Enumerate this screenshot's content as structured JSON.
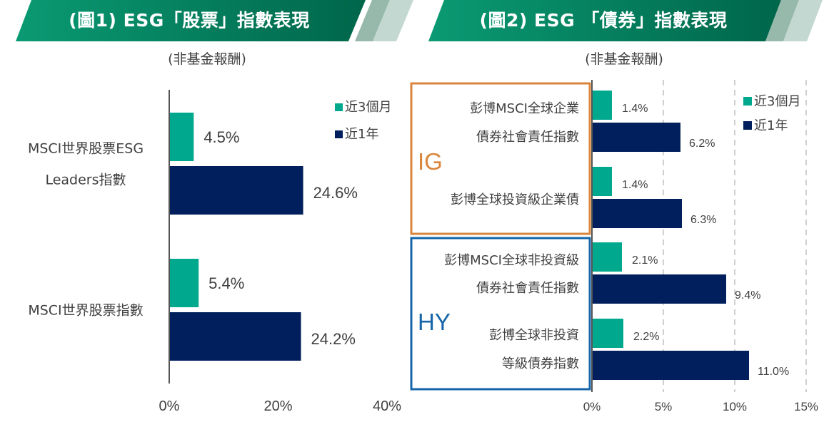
{
  "colors": {
    "banner_dark": "#00664a",
    "banner_light": "#0a9a73",
    "stripe1": "#97b9ac",
    "stripe2": "#c3d8d1",
    "series_3m": "#00a88e",
    "series_1y": "#001f5c",
    "ig_box": "#d9863c",
    "hy_box": "#1565a8",
    "text": "#404040",
    "axis": "#555555",
    "grid": "#d0d0d0"
  },
  "legend": [
    "近3個月",
    "近1年"
  ],
  "chart_data": [
    {
      "type": "bar",
      "orientation": "horizontal",
      "title": "(圖1) ESG「股票」指數表現",
      "subtitle": "(非基金報酬)",
      "categories": [
        [
          "MSCI世界股票ESG",
          "Leaders指數"
        ],
        [
          "MSCI世界股票指數"
        ]
      ],
      "series": [
        {
          "name": "近3個月",
          "values": [
            4.5,
            5.4
          ],
          "labels": [
            "4.5%",
            "5.4%"
          ]
        },
        {
          "name": "近1年",
          "values": [
            24.6,
            24.2
          ],
          "labels": [
            "24.6%",
            "24.2%"
          ]
        }
      ],
      "xlim": [
        0,
        40
      ],
      "xticks": [
        0,
        20,
        40
      ],
      "xtick_labels": [
        "0%",
        "20%",
        "40%"
      ],
      "grid": false,
      "legend_position": "top-right"
    },
    {
      "type": "bar",
      "orientation": "horizontal",
      "title": "(圖2) ESG 「債券」指數表現",
      "subtitle": "(非基金報酬)",
      "categories": [
        [
          "彭博MSCI全球企業",
          "債券社會責任指數"
        ],
        [
          "彭博全球投資級企業債"
        ],
        [
          "彭博MSCI全球非投資級",
          "債券社會責任指數"
        ],
        [
          "彭博全球非投資",
          "等級債券指數"
        ]
      ],
      "groups": [
        {
          "label": "IG",
          "categories": [
            0,
            1
          ]
        },
        {
          "label": "HY",
          "categories": [
            2,
            3
          ]
        }
      ],
      "series": [
        {
          "name": "近3個月",
          "values": [
            1.4,
            1.4,
            2.1,
            2.2
          ],
          "labels": [
            "1.4%",
            "1.4%",
            "2.1%",
            "2.2%"
          ]
        },
        {
          "name": "近1年",
          "values": [
            6.2,
            6.3,
            9.4,
            11.0
          ],
          "labels": [
            "6.2%",
            "6.3%",
            "9.4%",
            "11.0%"
          ]
        }
      ],
      "xlim": [
        0,
        15
      ],
      "xticks": [
        0,
        5,
        10,
        15
      ],
      "xtick_labels": [
        "0%",
        "5%",
        "10%",
        "15%"
      ],
      "grid": true,
      "legend_position": "top-right"
    }
  ]
}
